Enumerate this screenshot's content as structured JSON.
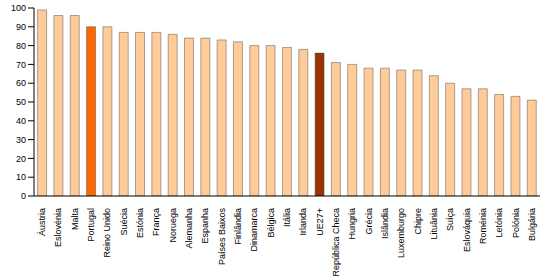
{
  "chart_data": {
    "type": "bar",
    "categories": [
      "Áustria",
      "Eslovénia",
      "Malta",
      "Portugal",
      "Reino Unido",
      "Suécia",
      "Estónia",
      "França",
      "Noruega",
      "Alemanha",
      "Espanha",
      "Países Baixos",
      "Finlândia",
      "Dinamarca",
      "Bélgica",
      "Itália",
      "Irlanda",
      "UE27+",
      "República Checa",
      "Hungria",
      "Grécia",
      "Islândia",
      "Luxemburgo",
      "Chipre",
      "Lituânia",
      "Suíça",
      "Eslováquia",
      "Roménia",
      "Letónia",
      "Polónia",
      "Bulgária"
    ],
    "values": [
      99,
      96,
      96,
      90,
      90,
      87,
      87,
      87,
      86,
      84,
      84,
      83,
      82,
      80,
      80,
      79,
      78,
      76,
      71,
      70,
      68,
      68,
      67,
      67,
      64,
      60,
      57,
      57,
      54,
      53,
      51
    ],
    "colors": [
      "#ffcc99",
      "#ffcc99",
      "#ffcc99",
      "#ff6600",
      "#ffcc99",
      "#ffcc99",
      "#ffcc99",
      "#ffcc99",
      "#ffcc99",
      "#ffcc99",
      "#ffcc99",
      "#ffcc99",
      "#ffcc99",
      "#ffcc99",
      "#ffcc99",
      "#ffcc99",
      "#ffcc99",
      "#993300",
      "#ffcc99",
      "#ffcc99",
      "#ffcc99",
      "#ffcc99",
      "#ffcc99",
      "#ffcc99",
      "#ffcc99",
      "#ffcc99",
      "#ffcc99",
      "#ffcc99",
      "#ffcc99",
      "#ffcc99",
      "#ffcc99"
    ],
    "ylim": [
      0,
      100
    ],
    "yticks": [
      0,
      10,
      20,
      30,
      40,
      50,
      60,
      70,
      80,
      90,
      100
    ],
    "grid": false
  }
}
